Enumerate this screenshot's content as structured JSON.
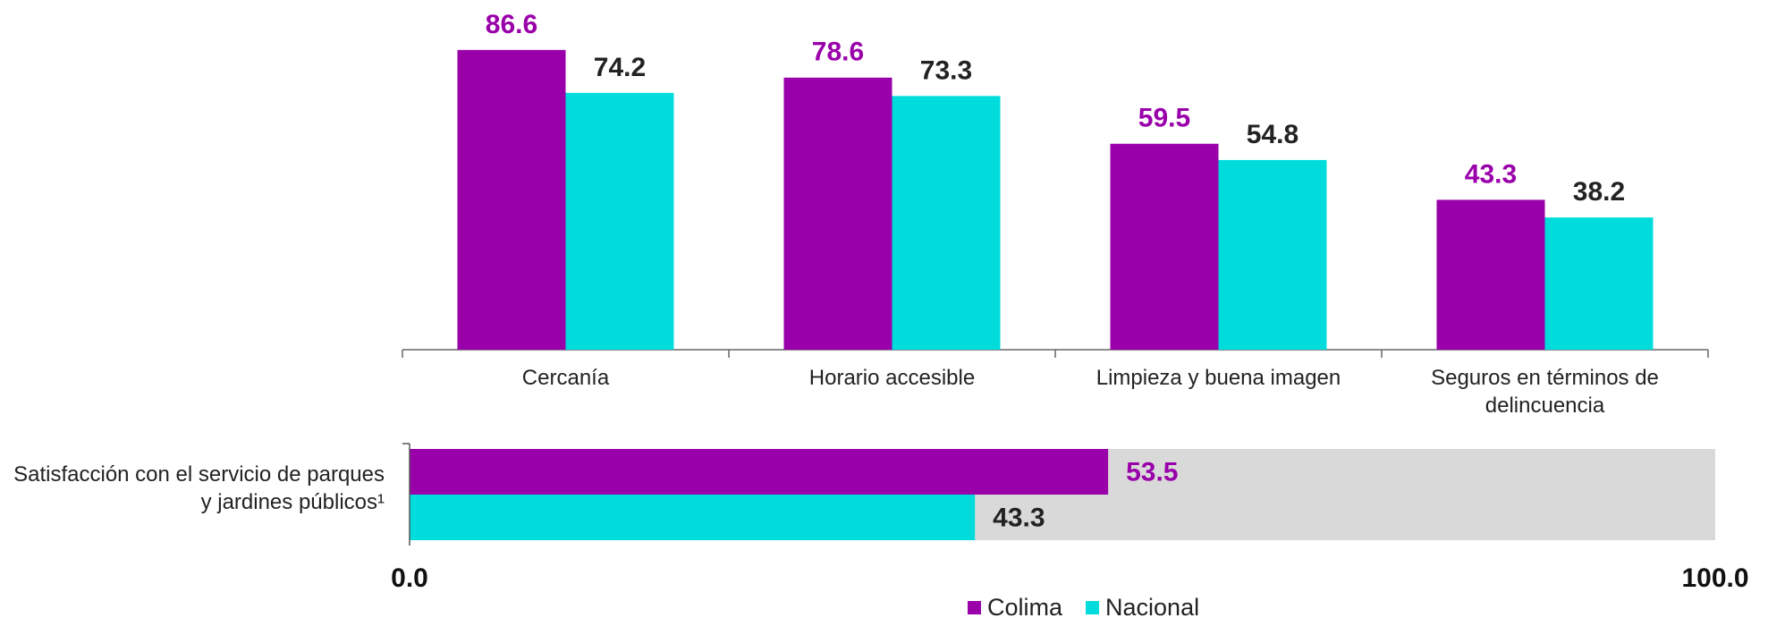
{
  "chart_data": [
    {
      "type": "bar",
      "categories": [
        "Cercanía",
        "Horario accesible",
        "Limpieza y buena imagen",
        "Seguros en términos de delincuencia"
      ],
      "series": [
        {
          "name": "Colima",
          "color": "#9900aa",
          "values": [
            86.6,
            78.6,
            59.5,
            43.3
          ]
        },
        {
          "name": "Nacional",
          "color": "#00dcdc",
          "values": [
            74.2,
            73.3,
            54.8,
            38.2
          ]
        }
      ],
      "ylim": [
        0,
        100
      ]
    },
    {
      "type": "hbar",
      "categories": [
        "Satisfacción con el servicio de parques y jardines públicos¹"
      ],
      "series": [
        {
          "color": "#9900aa",
          "values": [
            53.5
          ]
        },
        {
          "color": "#00dcdc",
          "values": [
            43.3
          ]
        }
      ],
      "xlim": [
        0,
        100
      ],
      "xticks": [
        {
          "value": 0,
          "label": "0.0"
        },
        {
          "value": 100,
          "label": "100.0"
        }
      ]
    }
  ]
}
